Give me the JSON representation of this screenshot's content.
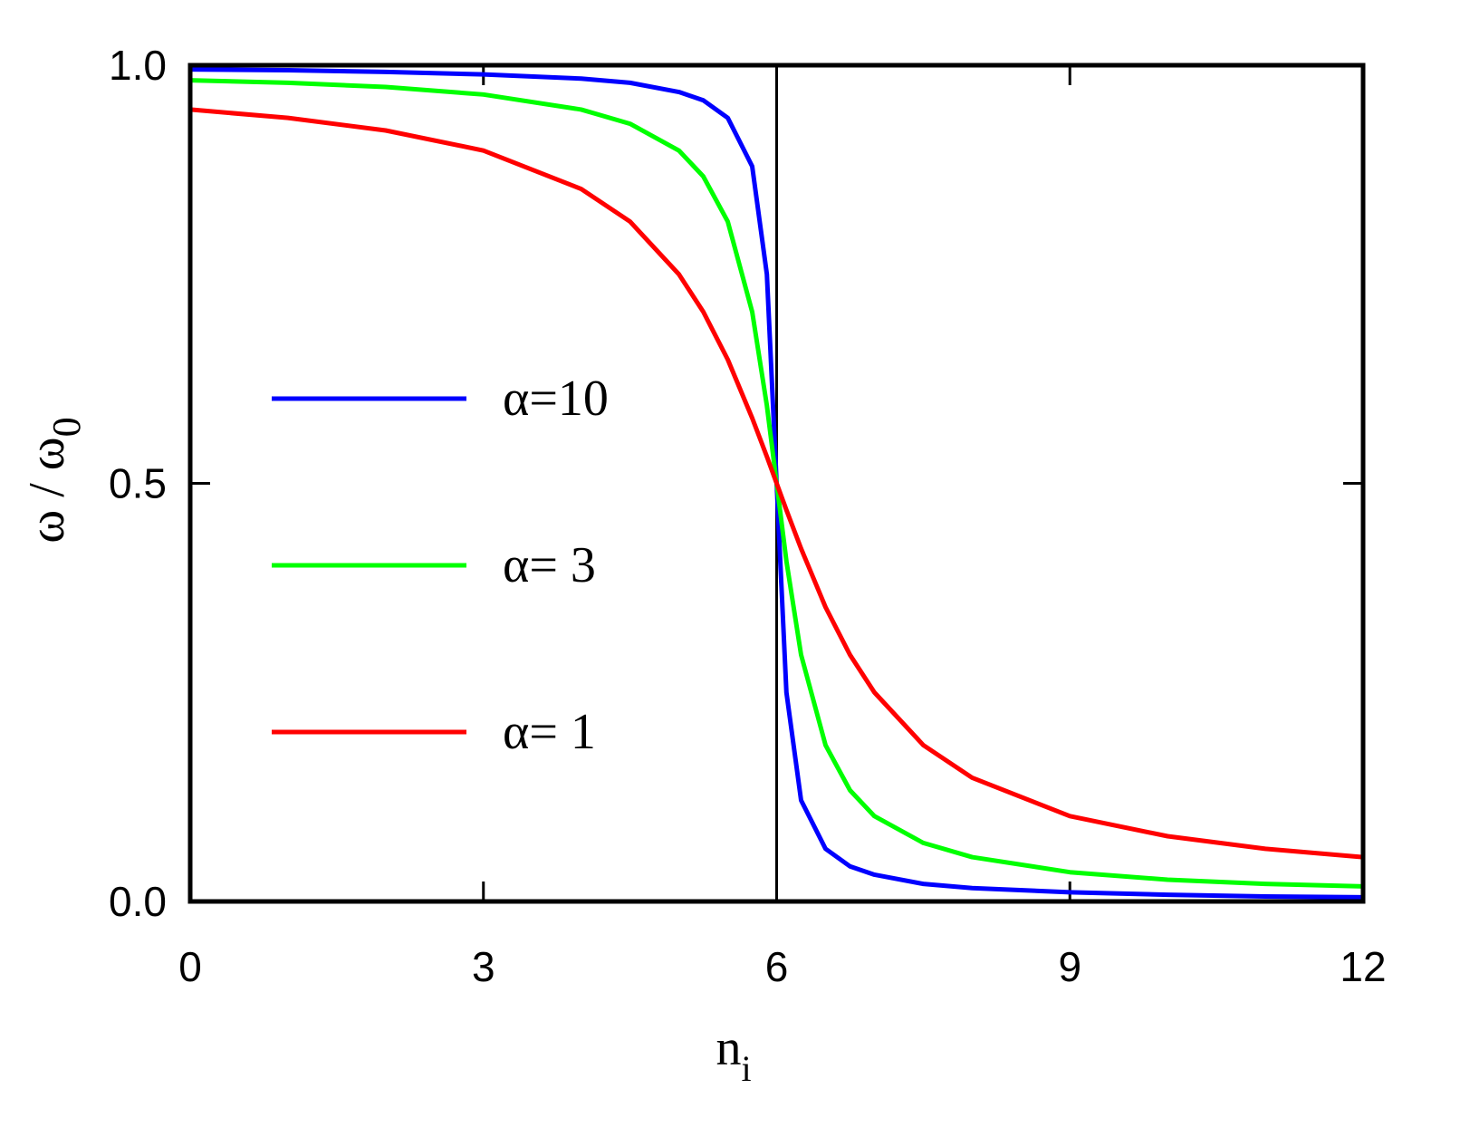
{
  "chart_data": {
    "type": "line",
    "xlabel": "n",
    "xlabel_sub": "i",
    "ylabel": "ω / ω",
    "ylabel_sub": "0",
    "x": [
      0,
      1,
      2,
      3,
      4,
      4.5,
      5,
      5.25,
      5.5,
      5.75,
      5.9,
      6,
      6.1,
      6.25,
      6.5,
      6.75,
      7,
      7.5,
      8,
      9,
      10,
      11,
      12
    ],
    "series": [
      {
        "name": "α=10",
        "color": "#0000ff",
        "values": [
          0.995,
          0.994,
          0.992,
          0.989,
          0.984,
          0.979,
          0.968,
          0.958,
          0.937,
          0.879,
          0.75,
          0.5,
          0.25,
          0.121,
          0.063,
          0.042,
          0.032,
          0.021,
          0.016,
          0.011,
          0.008,
          0.006,
          0.005
        ]
      },
      {
        "name": "α= 3",
        "color": "#00ff00",
        "values": [
          0.982,
          0.979,
          0.974,
          0.965,
          0.947,
          0.93,
          0.898,
          0.867,
          0.813,
          0.705,
          0.593,
          0.5,
          0.407,
          0.295,
          0.187,
          0.133,
          0.102,
          0.07,
          0.053,
          0.035,
          0.026,
          0.021,
          0.018
        ]
      },
      {
        "name": "α= 1",
        "color": "#ff0000",
        "values": [
          0.947,
          0.937,
          0.922,
          0.898,
          0.852,
          0.813,
          0.75,
          0.705,
          0.648,
          0.578,
          0.532,
          0.5,
          0.468,
          0.422,
          0.352,
          0.295,
          0.25,
          0.187,
          0.148,
          0.102,
          0.078,
          0.063,
          0.053
        ]
      }
    ],
    "xlim": [
      0,
      12
    ],
    "xticks": [
      0,
      3,
      6,
      9,
      12
    ],
    "ylim": [
      0,
      1
    ],
    "yticks": [
      {
        "value": 0,
        "label": "0.0"
      },
      {
        "value": 0.5,
        "label": "0.5"
      },
      {
        "value": 1,
        "label": "1.0"
      }
    ],
    "vline": 6,
    "vline_color": "#000000",
    "legend": "left",
    "grid": false
  }
}
